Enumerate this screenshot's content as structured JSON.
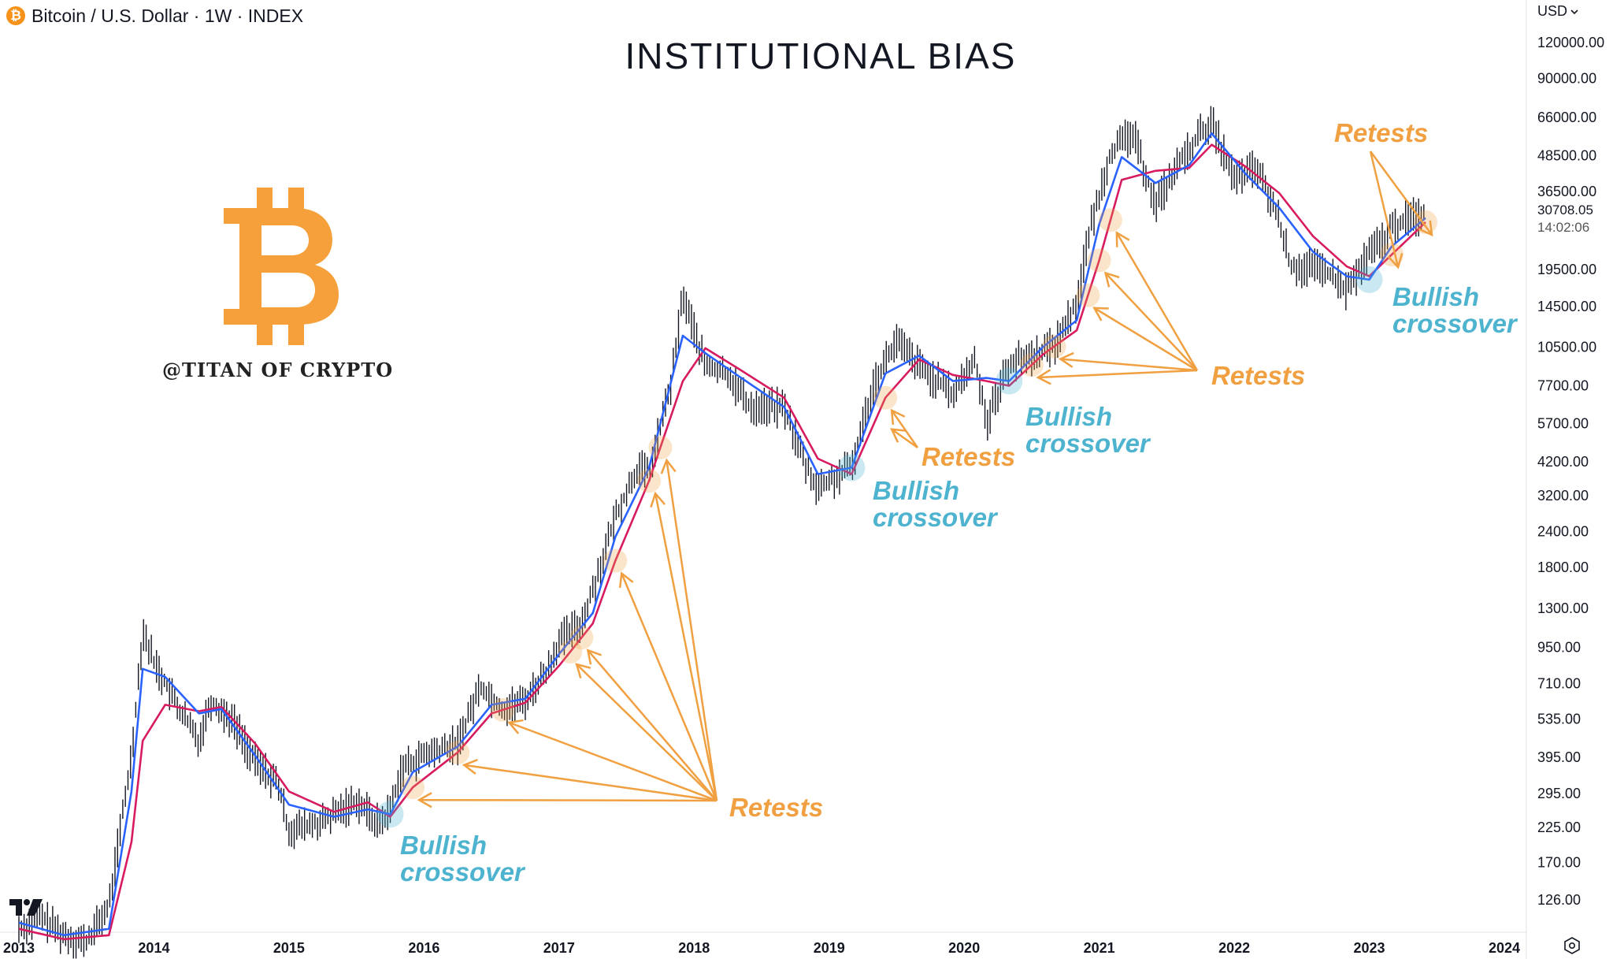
{
  "header": {
    "coin_glyph": "₿",
    "symbol": "Bitcoin / U.S. Dollar · 1W · INDEX",
    "currency": "USD"
  },
  "title": "INSTITUTIONAL BIAS",
  "watermark": {
    "handle": "@TITAN OF CRYPTO"
  },
  "last_price": "30708.05",
  "countdown": "14:02:06",
  "annotations": {
    "bullish_1": [
      "Bullish",
      "crossover"
    ],
    "bullish_2": [
      "Bullish",
      "crossover"
    ],
    "bullish_3": [
      "Bullish",
      "crossover"
    ],
    "bullish_4": [
      "Bullish",
      "crossover"
    ],
    "retests_1": "Retests",
    "retests_2": "Retests",
    "retests_3": "Retests",
    "retests_4": "Retests"
  },
  "colors": {
    "candle": "#131722",
    "ma_fast": "#2962ff",
    "ma_slow": "#d81b60",
    "retest": "#f0a040",
    "bullish": "#4db3cf"
  },
  "icons": [
    "bitcoin-coin-icon",
    "bitcoin-logo-icon",
    "tradingview-logo-icon",
    "settings-icon",
    "chevron-down-icon"
  ],
  "chart_data": {
    "type": "line",
    "title": "INSTITUTIONAL BIAS",
    "scale": "log",
    "xlim": [
      "2013",
      "2024"
    ],
    "ylim": [
      100,
      135000
    ],
    "x_ticks": [
      "2013",
      "2014",
      "2015",
      "2016",
      "2017",
      "2018",
      "2019",
      "2020",
      "2021",
      "2022",
      "2023",
      "2024"
    ],
    "y_ticks": [
      126,
      170,
      225,
      295,
      395,
      535,
      710,
      950,
      1300,
      1800,
      2400,
      3200,
      4200,
      5700,
      7700,
      10500,
      14500,
      19500,
      36500,
      48500,
      66000,
      90000,
      120000
    ],
    "y_tick_labels": [
      "126.00",
      "170.00",
      "225.00",
      "295.00",
      "395.00",
      "535.00",
      "710.00",
      "950.00",
      "1300.00",
      "1800.00",
      "2400.00",
      "3200.00",
      "4200.00",
      "5700.00",
      "7700.00",
      "10500.00",
      "14500.00",
      "19500.00",
      "36500.00",
      "48500.00",
      "66000.00",
      "90000.00",
      "120000.00"
    ],
    "series": [
      {
        "name": "",
        "style": "weekly price",
        "points": [
          [
            "2013-01",
            100
          ],
          [
            "2013-03",
            110
          ],
          [
            "2013-05",
            95
          ],
          [
            "2013-07",
            90
          ],
          [
            "2013-09",
            120
          ],
          [
            "2013-11",
            400
          ],
          [
            "2013-12",
            1100
          ],
          [
            "2014-01",
            850
          ],
          [
            "2014-03",
            600
          ],
          [
            "2014-05",
            450
          ],
          [
            "2014-06",
            620
          ],
          [
            "2014-08",
            530
          ],
          [
            "2014-10",
            380
          ],
          [
            "2014-12",
            320
          ],
          [
            "2015-01",
            220
          ],
          [
            "2015-04",
            235
          ],
          [
            "2015-07",
            280
          ],
          [
            "2015-09",
            230
          ],
          [
            "2015-10",
            260
          ],
          [
            "2015-11",
            360
          ],
          [
            "2016-01",
            400
          ],
          [
            "2016-04",
            440
          ],
          [
            "2016-06",
            700
          ],
          [
            "2016-08",
            580
          ],
          [
            "2016-10",
            620
          ],
          [
            "2016-12",
            800
          ],
          [
            "2017-01",
            1000
          ],
          [
            "2017-03",
            1150
          ],
          [
            "2017-05",
            2000
          ],
          [
            "2017-06",
            2700
          ],
          [
            "2017-08",
            4000
          ],
          [
            "2017-09",
            3800
          ],
          [
            "2017-11",
            8000
          ],
          [
            "2017-12",
            16000
          ],
          [
            "2018-02",
            9000
          ],
          [
            "2018-04",
            8500
          ],
          [
            "2018-06",
            6500
          ],
          [
            "2018-09",
            6500
          ],
          [
            "2018-11",
            4000
          ],
          [
            "2018-12",
            3400
          ],
          [
            "2019-03",
            4000
          ],
          [
            "2019-05",
            8000
          ],
          [
            "2019-07",
            11000
          ],
          [
            "2019-09",
            9000
          ],
          [
            "2019-12",
            7200
          ],
          [
            "2020-02",
            9500
          ],
          [
            "2020-03",
            5800
          ],
          [
            "2020-05",
            9200
          ],
          [
            "2020-07",
            9800
          ],
          [
            "2020-09",
            10600
          ],
          [
            "2020-11",
            15000
          ],
          [
            "2020-12",
            25000
          ],
          [
            "2021-02",
            50000
          ],
          [
            "2021-04",
            58000
          ],
          [
            "2021-06",
            33000
          ],
          [
            "2021-08",
            45000
          ],
          [
            "2021-10",
            58000
          ],
          [
            "2021-11",
            63000
          ],
          [
            "2022-01",
            40000
          ],
          [
            "2022-03",
            44000
          ],
          [
            "2022-05",
            29000
          ],
          [
            "2022-06",
            20000
          ],
          [
            "2022-09",
            19500
          ],
          [
            "2022-11",
            16500
          ],
          [
            "2023-01",
            22000
          ],
          [
            "2023-03",
            27000
          ],
          [
            "2023-04",
            29000
          ],
          [
            "2023-06",
            30700
          ]
        ]
      },
      {
        "name": "",
        "style": "fast moving average (blue)",
        "points": [
          [
            "2013-01",
            105
          ],
          [
            "2013-05",
            95
          ],
          [
            "2013-09",
            100
          ],
          [
            "2013-11",
            300
          ],
          [
            "2013-12",
            800
          ],
          [
            "2014-02",
            750
          ],
          [
            "2014-05",
            560
          ],
          [
            "2014-07",
            580
          ],
          [
            "2014-10",
            400
          ],
          [
            "2015-01",
            270
          ],
          [
            "2015-05",
            245
          ],
          [
            "2015-08",
            260
          ],
          [
            "2015-10",
            250
          ],
          [
            "2015-12",
            350
          ],
          [
            "2016-04",
            430
          ],
          [
            "2016-07",
            600
          ],
          [
            "2016-10",
            630
          ],
          [
            "2017-01",
            900
          ],
          [
            "2017-04",
            1250
          ],
          [
            "2017-06",
            2300
          ],
          [
            "2017-09",
            4000
          ],
          [
            "2017-12",
            11500
          ],
          [
            "2018-02",
            10000
          ],
          [
            "2018-05",
            8300
          ],
          [
            "2018-09",
            6500
          ],
          [
            "2018-12",
            3800
          ],
          [
            "2019-03",
            4000
          ],
          [
            "2019-06",
            8500
          ],
          [
            "2019-09",
            9800
          ],
          [
            "2019-12",
            8000
          ],
          [
            "2020-03",
            8200
          ],
          [
            "2020-05",
            8000
          ],
          [
            "2020-08",
            10500
          ],
          [
            "2020-11",
            13000
          ],
          [
            "2021-01",
            28000
          ],
          [
            "2021-03",
            48000
          ],
          [
            "2021-06",
            39000
          ],
          [
            "2021-09",
            45000
          ],
          [
            "2021-11",
            58000
          ],
          [
            "2022-02",
            42000
          ],
          [
            "2022-05",
            32000
          ],
          [
            "2022-08",
            22500
          ],
          [
            "2022-11",
            18500
          ],
          [
            "2023-01",
            18000
          ],
          [
            "2023-03",
            23500
          ],
          [
            "2023-06",
            29500
          ]
        ]
      },
      {
        "name": "",
        "style": "slow moving average (red)",
        "points": [
          [
            "2013-01",
            100
          ],
          [
            "2013-05",
            92
          ],
          [
            "2013-09",
            95
          ],
          [
            "2013-11",
            200
          ],
          [
            "2013-12",
            450
          ],
          [
            "2014-02",
            600
          ],
          [
            "2014-05",
            570
          ],
          [
            "2014-07",
            590
          ],
          [
            "2014-10",
            440
          ],
          [
            "2015-01",
            300
          ],
          [
            "2015-05",
            255
          ],
          [
            "2015-08",
            275
          ],
          [
            "2015-10",
            245
          ],
          [
            "2015-12",
            310
          ],
          [
            "2016-04",
            410
          ],
          [
            "2016-07",
            560
          ],
          [
            "2016-10",
            610
          ],
          [
            "2017-01",
            820
          ],
          [
            "2017-04",
            1150
          ],
          [
            "2017-06",
            1900
          ],
          [
            "2017-09",
            3600
          ],
          [
            "2017-12",
            8000
          ],
          [
            "2018-02",
            10400
          ],
          [
            "2018-05",
            8800
          ],
          [
            "2018-09",
            7000
          ],
          [
            "2018-12",
            4300
          ],
          [
            "2019-03",
            3800
          ],
          [
            "2019-06",
            7000
          ],
          [
            "2019-09",
            9500
          ],
          [
            "2019-12",
            8400
          ],
          [
            "2020-03",
            8000
          ],
          [
            "2020-05",
            7700
          ],
          [
            "2020-08",
            9900
          ],
          [
            "2020-11",
            12000
          ],
          [
            "2021-01",
            21000
          ],
          [
            "2021-03",
            40000
          ],
          [
            "2021-06",
            43000
          ],
          [
            "2021-09",
            44000
          ],
          [
            "2021-11",
            53000
          ],
          [
            "2022-02",
            44500
          ],
          [
            "2022-05",
            36000
          ],
          [
            "2022-08",
            25500
          ],
          [
            "2022-11",
            20000
          ],
          [
            "2023-01",
            18500
          ],
          [
            "2023-03",
            22000
          ],
          [
            "2023-06",
            28500
          ]
        ]
      }
    ],
    "bullish_crossovers": [
      "2015-10",
      "2019-03",
      "2020-05",
      "2023-01"
    ],
    "retests": [
      "2015-12",
      "2016-04",
      "2016-08",
      "2017-02",
      "2017-03",
      "2017-06",
      "2017-09",
      "2017-10",
      "2019-06",
      "2020-07",
      "2020-09",
      "2020-12",
      "2021-01",
      "2021-02",
      "2023-03",
      "2023-06"
    ],
    "grid": false,
    "legend": "none"
  }
}
